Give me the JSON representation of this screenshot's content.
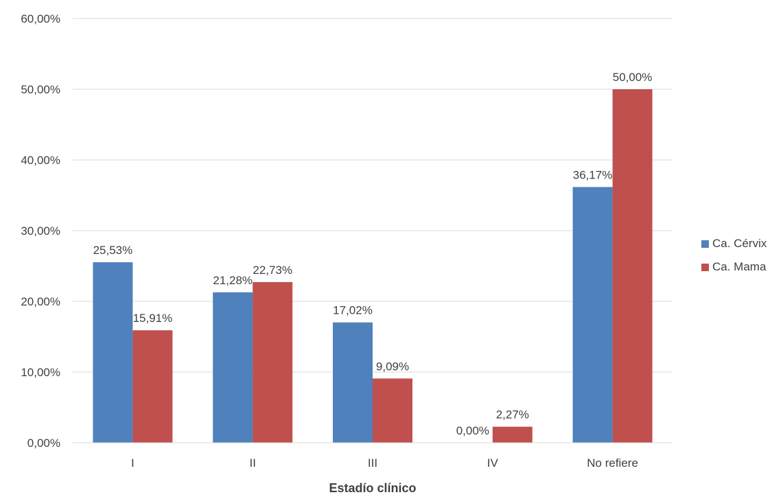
{
  "chart_data": {
    "type": "bar",
    "categories": [
      "I",
      "II",
      "III",
      "IV",
      "No refiere"
    ],
    "series": [
      {
        "name": "Ca. Cérvix",
        "values": [
          25.53,
          21.28,
          17.02,
          0.0,
          36.17
        ],
        "labels": [
          "25,53%",
          "21,28%",
          "17,02%",
          "0,00%",
          "36,17%"
        ],
        "color": "#4F81BD"
      },
      {
        "name": "Ca. Mama",
        "values": [
          15.91,
          22.73,
          9.09,
          2.27,
          50.0
        ],
        "labels": [
          "15,91%",
          "22,73%",
          "9,09%",
          "2,27%",
          "50,00%"
        ],
        "color": "#C0504D"
      }
    ],
    "xlabel": "Estadío clínico",
    "ylabel": "",
    "ylim": [
      0,
      60
    ],
    "yticks": [
      "0,00%",
      "10,00%",
      "20,00%",
      "30,00%",
      "40,00%",
      "50,00%",
      "60,00%"
    ],
    "grid": true,
    "legend_position": "right"
  }
}
